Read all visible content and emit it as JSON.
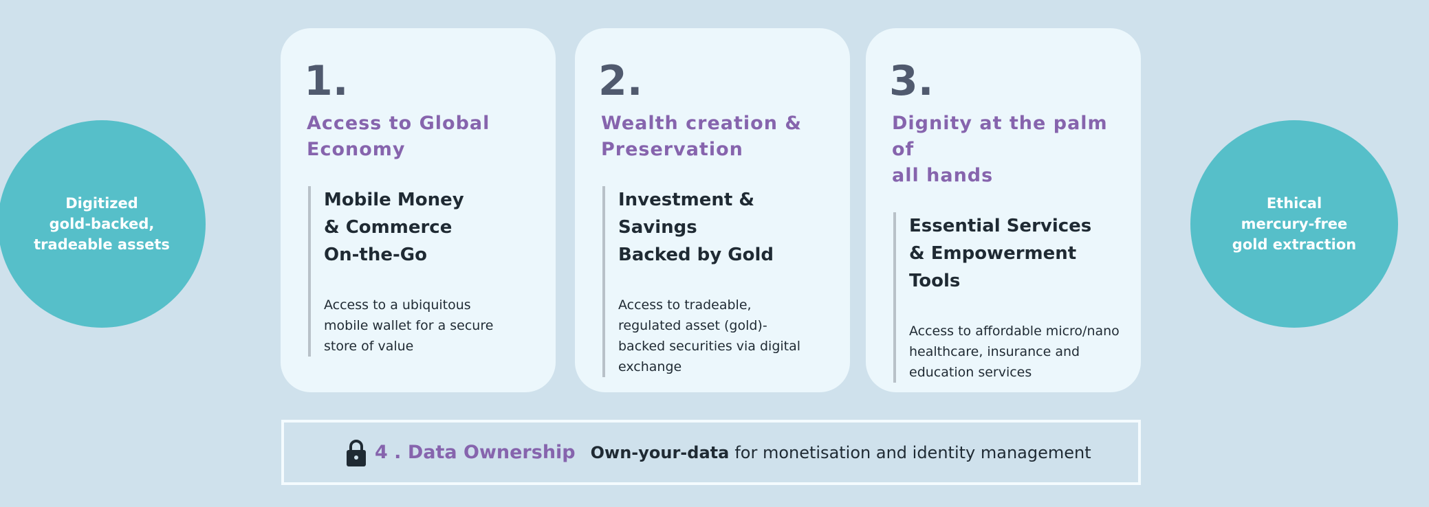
{
  "left_circle": {
    "text": "Digitized\ngold-backed,\ntradeable assets"
  },
  "right_circle": {
    "text": "Ethical\nmercury-free\ngold extraction"
  },
  "cards": [
    {
      "number": "1.",
      "title": "Access to Global\nEconomy",
      "subtitle": "Mobile Money\n& Commerce\nOn-the-Go",
      "body": "Access to a ubiquitous\nmobile wallet for a secure\nstore of value"
    },
    {
      "number": "2.",
      "title": "Wealth creation &\nPreservation",
      "subtitle": "Investment & Savings\nBacked by Gold",
      "body": "Access to tradeable,\nregulated asset (gold)-\nbacked securities via digital\nexchange"
    },
    {
      "number": "3.",
      "title": "Dignity at the palm of\nall hands",
      "subtitle": "Essential Services\n& Empowerment Tools",
      "body": "Access to affordable micro/nano\nhealthcare, insurance and\neducation services"
    }
  ],
  "data_ownership": {
    "icon": "lock-icon",
    "title": "4 . Data Ownership",
    "bold": "Own-your-data",
    "text": "for monetisation and identity management"
  },
  "colors": {
    "background": "#cfe1ec",
    "card": "#ecf7fc",
    "accent_purple": "#8664ad",
    "circle_teal": "#56bfc9"
  }
}
